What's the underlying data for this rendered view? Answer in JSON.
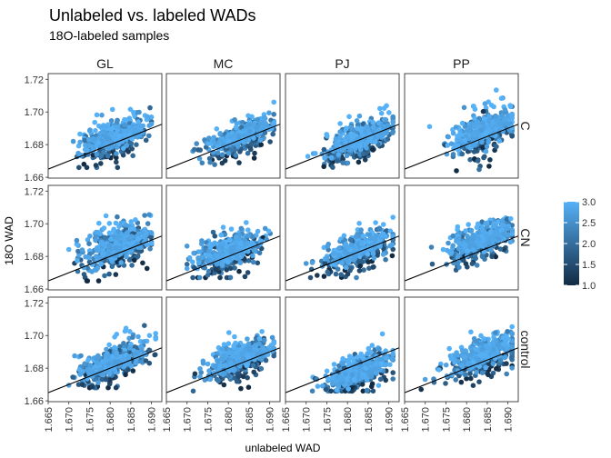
{
  "chart_data": {
    "type": "scatter",
    "title": "Unlabeled vs. labeled WADs",
    "subtitle": "18O-labeled samples",
    "xlabel": "unlabeled WAD",
    "ylabel": "18O WAD",
    "xlim": [
      1.665,
      1.6925
    ],
    "ylim": [
      1.6595,
      1.7235
    ],
    "xticks": [
      "1.665",
      "1.670",
      "1.675",
      "1.680",
      "1.685",
      "1.690"
    ],
    "yticks": [
      "1.66",
      "1.68",
      "1.70",
      "1.72"
    ],
    "facet_columns": [
      "GL",
      "MC",
      "PJ",
      "PP"
    ],
    "facet_rows": [
      "C",
      "CN",
      "control"
    ],
    "reference_line": {
      "slope": 1,
      "intercept": 0
    },
    "colorbar": {
      "ticks": [
        "3.0",
        "2.5",
        "2.0",
        "1.5",
        "1.0"
      ],
      "range": [
        1.0,
        3.0
      ],
      "low_color": "#132b43",
      "high_color": "#56b1f7"
    },
    "panels": [
      {
        "column": "GL",
        "row": "C",
        "x_range": [
          1.67,
          1.69
        ],
        "y_range": [
          1.666,
          1.716
        ],
        "cluster_center": [
          1.681,
          1.684
        ]
      },
      {
        "column": "MC",
        "row": "C",
        "x_range": [
          1.67,
          1.691
        ],
        "y_range": [
          1.664,
          1.706
        ],
        "cluster_center": [
          1.683,
          1.685
        ]
      },
      {
        "column": "PJ",
        "row": "C",
        "x_range": [
          1.67,
          1.691
        ],
        "y_range": [
          1.665,
          1.713
        ],
        "cluster_center": [
          1.683,
          1.683
        ]
      },
      {
        "column": "PP",
        "row": "C",
        "x_range": [
          1.67,
          1.691
        ],
        "y_range": [
          1.664,
          1.726
        ],
        "cluster_center": [
          1.684,
          1.688
        ]
      },
      {
        "column": "GL",
        "row": "CN",
        "x_range": [
          1.67,
          1.69
        ],
        "y_range": [
          1.665,
          1.724
        ],
        "cluster_center": [
          1.682,
          1.686
        ]
      },
      {
        "column": "MC",
        "row": "CN",
        "x_range": [
          1.67,
          1.691
        ],
        "y_range": [
          1.667,
          1.721
        ],
        "cluster_center": [
          1.68,
          1.683
        ]
      },
      {
        "column": "PJ",
        "row": "CN",
        "x_range": [
          1.67,
          1.691
        ],
        "y_range": [
          1.667,
          1.713
        ],
        "cluster_center": [
          1.683,
          1.684
        ]
      },
      {
        "column": "PP",
        "row": "CN",
        "x_range": [
          1.67,
          1.691
        ],
        "y_range": [
          1.668,
          1.717
        ],
        "cluster_center": [
          1.684,
          1.69
        ]
      },
      {
        "column": "GL",
        "row": "control",
        "x_range": [
          1.67,
          1.691
        ],
        "y_range": [
          1.668,
          1.716
        ],
        "cluster_center": [
          1.681,
          1.684
        ]
      },
      {
        "column": "MC",
        "row": "control",
        "x_range": [
          1.67,
          1.691
        ],
        "y_range": [
          1.664,
          1.714
        ],
        "cluster_center": [
          1.683,
          1.686
        ]
      },
      {
        "column": "PJ",
        "row": "control",
        "x_range": [
          1.67,
          1.691
        ],
        "y_range": [
          1.666,
          1.715
        ],
        "cluster_center": [
          1.683,
          1.678
        ]
      },
      {
        "column": "PP",
        "row": "control",
        "x_range": [
          1.667,
          1.691
        ],
        "y_range": [
          1.667,
          1.716
        ],
        "cluster_center": [
          1.684,
          1.688
        ]
      }
    ]
  }
}
